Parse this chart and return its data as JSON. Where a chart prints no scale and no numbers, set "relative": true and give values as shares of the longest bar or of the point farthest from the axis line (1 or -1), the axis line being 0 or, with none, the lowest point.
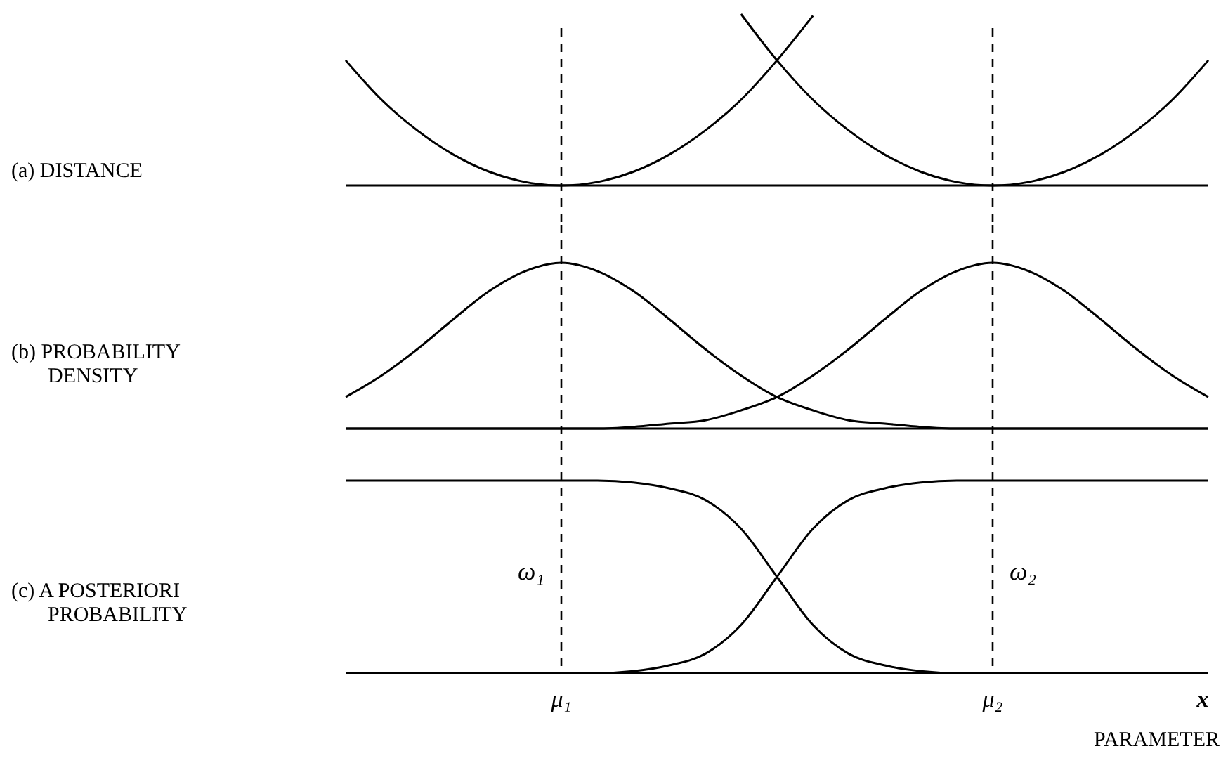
{
  "chart_data": [
    {
      "type": "line",
      "ylabel": "(a) DISTANCE",
      "relative": true,
      "tick_labels": false,
      "categories": [
        null,
        null,
        null,
        null,
        null,
        null,
        "μ₁",
        null,
        null,
        null,
        null,
        null,
        null,
        null,
        null,
        null,
        null,
        null,
        "μ₂",
        null,
        null,
        null,
        null,
        null,
        null
      ],
      "series": [
        {
          "color": "#000000",
          "values": [
            0.73,
            0.5,
            0.32,
            0.18,
            0.08,
            0.02,
            0,
            0.02,
            0.08,
            0.18,
            0.32,
            0.5,
            0.73,
            0.99,
            null,
            null,
            null,
            null,
            null,
            null,
            null,
            null,
            null,
            null,
            null
          ]
        },
        {
          "color": "#000000",
          "values": [
            null,
            null,
            null,
            null,
            null,
            null,
            null,
            null,
            null,
            null,
            null,
            1,
            0.73,
            0.5,
            0.32,
            0.18,
            0.08,
            0.02,
            0,
            0.02,
            0.08,
            0.18,
            0.32,
            0.5,
            0.73
          ]
        }
      ],
      "ref_lines": [
        {
          "axis": "x",
          "value": "μ₁",
          "line_style": "dashed"
        },
        {
          "axis": "x",
          "value": "μ₂",
          "line_style": "dashed"
        }
      ]
    },
    {
      "type": "line",
      "ylabel": "(b) PROBABILITY DENSITY",
      "relative": true,
      "tick_labels": false,
      "categories": [
        null,
        null,
        null,
        null,
        null,
        null,
        "μ₁",
        null,
        null,
        null,
        null,
        null,
        null,
        null,
        null,
        null,
        null,
        null,
        "μ₂",
        null,
        null,
        null,
        null,
        null,
        null
      ],
      "series": [
        {
          "color": "#000000",
          "values": [
            0.19,
            0.32,
            0.48,
            0.66,
            0.83,
            0.95,
            1,
            0.95,
            0.83,
            0.66,
            0.48,
            0.32,
            0.19,
            0.11,
            0.05,
            0.03,
            0.01,
            0,
            0,
            0,
            0,
            0,
            0,
            0,
            0
          ]
        },
        {
          "color": "#000000",
          "values": [
            0,
            0,
            0,
            0,
            0,
            0,
            0,
            0,
            0.01,
            0.03,
            0.05,
            0.11,
            0.19,
            0.32,
            0.48,
            0.66,
            0.83,
            0.95,
            1,
            0.95,
            0.83,
            0.66,
            0.48,
            0.32,
            0.19
          ]
        }
      ],
      "ref_lines": [
        {
          "axis": "x",
          "value": "μ₁",
          "line_style": "dashed"
        },
        {
          "axis": "x",
          "value": "μ₂",
          "line_style": "dashed"
        }
      ]
    },
    {
      "type": "line",
      "ylabel": "(c) A POSTERIORI PROBABILITY",
      "relative": true,
      "xlabel": "x",
      "categories": [
        null,
        null,
        null,
        null,
        null,
        null,
        "μ₁",
        null,
        null,
        null,
        null,
        null,
        null,
        null,
        null,
        null,
        null,
        null,
        "μ₂",
        null,
        null,
        null,
        null,
        null,
        null
      ],
      "series": [
        {
          "color": "#000000",
          "values": [
            1,
            1,
            1,
            1,
            1,
            1,
            1,
            1,
            0.99,
            0.96,
            0.9,
            0.75,
            0.5,
            0.25,
            0.1,
            0.04,
            0.01,
            0,
            0,
            0,
            0,
            0,
            0,
            0,
            0
          ]
        },
        {
          "color": "#000000",
          "values": [
            0,
            0,
            0,
            0,
            0,
            0,
            0,
            0,
            0.01,
            0.04,
            0.1,
            0.25,
            0.5,
            0.75,
            0.9,
            0.96,
            0.99,
            1,
            1,
            1,
            1,
            1,
            1,
            1,
            1
          ]
        }
      ],
      "ref_lines": [
        {
          "axis": "x",
          "value": "μ₁",
          "line_style": "dashed"
        },
        {
          "axis": "x",
          "value": "μ₂",
          "line_style": "dashed"
        }
      ],
      "annotations": [
        {
          "text": "ω₁",
          "x": "μ₁",
          "y": 0.5
        },
        {
          "text": "ω₂",
          "x": "μ₂",
          "y": 0.5
        },
        "PARAMETER"
      ]
    }
  ]
}
